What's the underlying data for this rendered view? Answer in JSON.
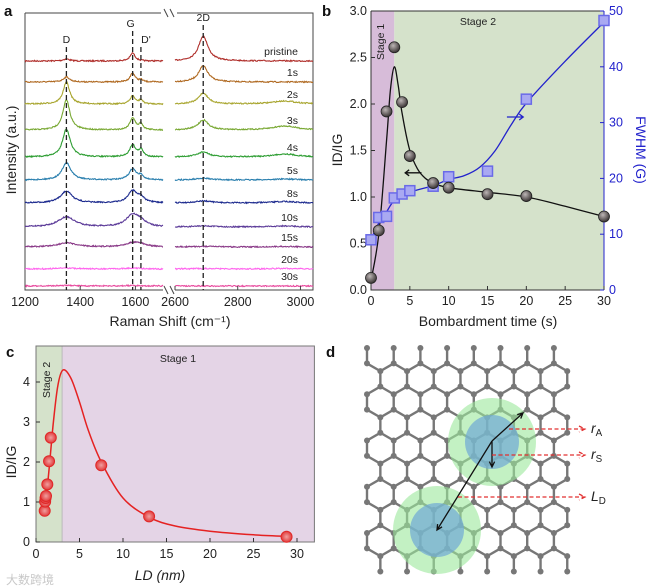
{
  "panel_labels": {
    "a": "a",
    "b": "b",
    "c": "c",
    "d": "d"
  },
  "watermark": "大数跨境",
  "chart_data": [
    {
      "panel": "a",
      "type": "line",
      "xlabel": "Raman Shift (cm⁻¹)",
      "ylabel": "Intensity (a.u.)",
      "xlim_left": [
        1200,
        1700
      ],
      "xlim_right": [
        2600,
        3040
      ],
      "xticks_left": [
        1200,
        1400,
        1600
      ],
      "xticks_right": [
        2600,
        2800,
        3000
      ],
      "peak_labels": [
        {
          "text": "D",
          "x": 1350
        },
        {
          "text": "G",
          "x": 1590
        },
        {
          "text": "D'",
          "x": 1620
        },
        {
          "text": "2D",
          "x": 2690
        }
      ],
      "peak_positions": {
        "D": 1350,
        "G": 1590,
        "Dp": 1620,
        "2D": 2690,
        "D+G": 2950
      },
      "series": [
        {
          "name": "pristine",
          "color": "#b0302c",
          "D": 2,
          "G": 8,
          "Dp": 0,
          "2D": 25,
          "DG": 0,
          "broad": 1
        },
        {
          "name": "1s",
          "color": "#b06a22",
          "D": 5,
          "G": 9,
          "Dp": 2,
          "2D": 16,
          "DG": 0,
          "broad": 1
        },
        {
          "name": "2s",
          "color": "#a9a630",
          "D": 22,
          "G": 8,
          "Dp": 4,
          "2D": 11,
          "DG": 3,
          "broad": 1
        },
        {
          "name": "3s",
          "color": "#78a832",
          "D": 30,
          "G": 12,
          "Dp": 6,
          "2D": 10,
          "DG": 4,
          "broad": 1.1
        },
        {
          "name": "4s",
          "color": "#2f9e34",
          "D": 28,
          "G": 12,
          "Dp": 7,
          "2D": 5,
          "DG": 3,
          "broad": 1.2
        },
        {
          "name": "5s",
          "color": "#2a7fae",
          "D": 17,
          "G": 11,
          "Dp": 4,
          "2D": 2,
          "DG": 1,
          "broad": 1.4
        },
        {
          "name": "8s",
          "color": "#1c2a8e",
          "D": 12,
          "G": 12,
          "Dp": 5,
          "2D": 2,
          "DG": 1.5,
          "broad": 1.8
        },
        {
          "name": "10s",
          "color": "#5b3a98",
          "D": 10,
          "G": 12,
          "Dp": 4,
          "2D": 1,
          "DG": 1,
          "broad": 2.6
        },
        {
          "name": "15s",
          "color": "#8a3a88",
          "D": 4,
          "G": 4,
          "Dp": 2,
          "2D": 0.5,
          "DG": 0.5,
          "broad": 3
        },
        {
          "name": "20s",
          "color": "#ff66ee",
          "D": 1,
          "G": 1,
          "Dp": 0,
          "2D": 0.5,
          "DG": 0.5,
          "broad": 3
        },
        {
          "name": "30s",
          "color": "#e84a9e",
          "D": 0.5,
          "G": 0.5,
          "Dp": 0,
          "2D": 0,
          "DG": 0,
          "broad": 3
        }
      ]
    },
    {
      "panel": "b",
      "type": "scatter",
      "xlabel": "Bombardment time (s)",
      "ylabel": "ID/IG",
      "ylabel_right": "FWHM (G)",
      "xlim": [
        0,
        30
      ],
      "ylim": [
        0,
        3
      ],
      "ylim_right": [
        0,
        50
      ],
      "xticks": [
        0,
        5,
        10,
        15,
        20,
        25,
        30
      ],
      "yticks": [
        "0.0",
        "0.5",
        "1.0",
        "1.5",
        "2.0",
        "2.5",
        "3.0"
      ],
      "yticks_right": [
        0,
        10,
        20,
        30,
        40,
        50
      ],
      "regions": [
        {
          "label": "Stage 1",
          "from": 0,
          "to": 3,
          "color": "#d7bcd9"
        },
        {
          "label": "Stage 2",
          "from": 3,
          "to": 30,
          "color": "#d5e2cb"
        }
      ],
      "series": [
        {
          "name": "ID/IG",
          "axis": "left",
          "color": "#222222",
          "x": [
            0,
            1,
            2,
            3,
            4,
            5,
            8,
            10,
            15,
            20,
            30
          ],
          "y": [
            0.13,
            0.64,
            1.92,
            2.61,
            2.02,
            1.44,
            1.15,
            1.1,
            1.03,
            1.01,
            0.79
          ],
          "fit_x": [
            0,
            1,
            2,
            2.5,
            3,
            3.5,
            4,
            5,
            6,
            7,
            8,
            10,
            15,
            20,
            25,
            30
          ],
          "fit_y": [
            0.1,
            0.6,
            1.6,
            2.15,
            2.4,
            2.2,
            1.9,
            1.5,
            1.3,
            1.2,
            1.15,
            1.1,
            1.05,
            1.0,
            0.9,
            0.79
          ]
        },
        {
          "name": "FWHM (G)",
          "axis": "right",
          "color": "#2222cc",
          "x": [
            0,
            1,
            2,
            3,
            4,
            5,
            8,
            10,
            15,
            20,
            30
          ],
          "y": [
            9,
            13,
            13.2,
            16.5,
            17.2,
            17.8,
            18.6,
            20.3,
            21.3,
            34.2,
            48.3
          ],
          "fit_x": [
            0,
            1,
            2,
            3,
            5,
            8,
            10,
            12,
            14,
            16,
            18,
            20,
            25,
            30
          ],
          "fit_y": [
            9,
            12,
            14,
            16,
            17.5,
            18.7,
            19.8,
            20.5,
            22,
            25,
            29.5,
            33.5,
            41,
            48
          ]
        }
      ]
    },
    {
      "panel": "c",
      "type": "scatter",
      "xlabel": "LD (nm)",
      "ylabel": "ID/IG",
      "xlim": [
        0,
        32
      ],
      "ylim": [
        0,
        4.9
      ],
      "xticks": [
        0,
        5,
        10,
        15,
        20,
        25,
        30
      ],
      "yticks": [
        0,
        1,
        2,
        3,
        4
      ],
      "regions": [
        {
          "label": "Stage 2",
          "from": 0,
          "to": 3,
          "color": "#d5e2cb"
        },
        {
          "label": "Stage 1",
          "from": 3,
          "to": 32,
          "color": "#e4d4e6"
        }
      ],
      "series": [
        {
          "name": "ID/IG",
          "color": "#e83a3a",
          "x": [
            1.0,
            1.05,
            1.1,
            1.15,
            1.3,
            1.5,
            1.7,
            7.5,
            13,
            28.8
          ],
          "y": [
            0.78,
            1.01,
            1.1,
            1.15,
            1.44,
            2.02,
            2.61,
            1.92,
            0.64,
            0.13
          ],
          "fit_x": [
            1,
            1.5,
            2,
            2.5,
            3.1,
            4,
            5,
            6,
            7.5,
            10,
            13,
            16,
            20,
            25,
            29
          ],
          "fit_y": [
            0.7,
            1.8,
            3.0,
            3.9,
            4.3,
            4.1,
            3.5,
            2.8,
            2.0,
            1.1,
            0.62,
            0.4,
            0.27,
            0.18,
            0.14
          ]
        }
      ]
    }
  ],
  "diagram_d": {
    "labels": {
      "rA": "r",
      "rA_sub": "A",
      "rS": "r",
      "rS_sub": "S",
      "LD": "L",
      "LD_sub": "D"
    },
    "colors": {
      "lattice": "#777777",
      "activated": "#9be89b",
      "structural": "#6fa8d6",
      "dashed": "#e23030"
    }
  }
}
